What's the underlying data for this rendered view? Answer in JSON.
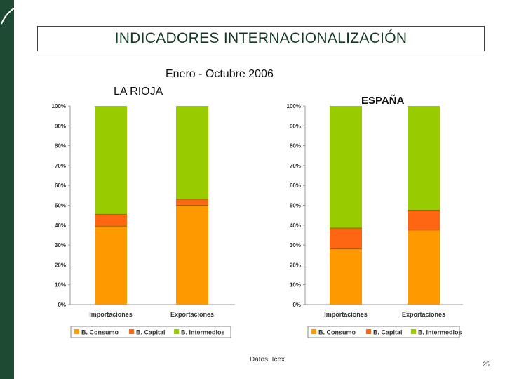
{
  "title": "INDICADORES INTERNACIONALIZACIÓN",
  "subtitle": "Enero - Octubre 2006",
  "source": "Datos: Icex",
  "page_number": "25",
  "colors": {
    "sidebar": "#1e4a33",
    "consumo": "#ff9900",
    "capital": "#ff6611",
    "intermedios": "#99cc00"
  },
  "chart_data": [
    {
      "type": "bar",
      "stacked": true,
      "label": "LA RIOJA",
      "categories": [
        "Importaciones",
        "Exportaciones"
      ],
      "series": [
        {
          "name": "B. Consumo",
          "values": [
            39.5,
            50
          ]
        },
        {
          "name": "B. Capital",
          "values": [
            6,
            3
          ]
        },
        {
          "name": "B. Intermedios",
          "values": [
            54.5,
            47
          ]
        }
      ],
      "yticks": [
        "0%",
        "10%",
        "20%",
        "30%",
        "40%",
        "50%",
        "60%",
        "70%",
        "80%",
        "90%",
        "100%"
      ],
      "ylim": [
        0,
        100
      ],
      "legend": [
        "B. Consumo",
        "B. Capital",
        "B. Intermedios"
      ]
    },
    {
      "type": "bar",
      "stacked": true,
      "label": "ESPAÑA",
      "categories": [
        "Importaciones",
        "Exportaciones"
      ],
      "series": [
        {
          "name": "B. Consumo",
          "values": [
            28,
            37.5
          ]
        },
        {
          "name": "B. Capital",
          "values": [
            10.5,
            10
          ]
        },
        {
          "name": "B. Intermedios",
          "values": [
            61.5,
            52.5
          ]
        }
      ],
      "yticks": [
        "0%",
        "10%",
        "20%",
        "30%",
        "40%",
        "50%",
        "60%",
        "70%",
        "80%",
        "90%",
        "100%"
      ],
      "ylim": [
        0,
        100
      ],
      "legend": [
        "B. Consumo",
        "B. Capital",
        "B. Intermedios"
      ]
    }
  ]
}
